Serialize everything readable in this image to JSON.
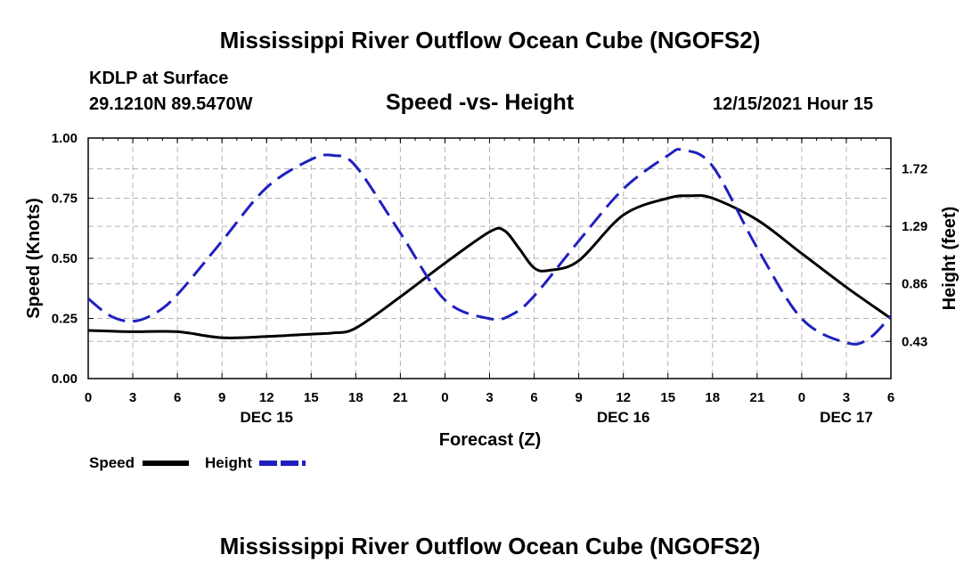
{
  "header": {
    "title": "Mississippi River Outflow Ocean Cube (NGOFS2)",
    "station": "KDLP at Surface",
    "coords": "29.1210N  89.5470W",
    "subtitle": "Speed -vs- Height",
    "datetime": "12/15/2021 Hour 15"
  },
  "footer": {
    "title": "Mississippi River Outflow Ocean Cube (NGOFS2)"
  },
  "colors": {
    "speed": "#000000",
    "height": "#1f1fbf",
    "grid": "#b4b4b4"
  },
  "chart_data": {
    "type": "line",
    "title": "Speed -vs- Height",
    "xlabel": "Forecast (Z)",
    "ylabel": "Speed (Knots)",
    "y2label": "Height (feet)",
    "xlim": [
      0,
      54
    ],
    "ylim": [
      0,
      1
    ],
    "y2lim": [
      0.152,
      1.95
    ],
    "x_ticks": [
      0,
      3,
      6,
      9,
      12,
      15,
      18,
      21,
      24,
      27,
      30,
      33,
      36,
      39,
      42,
      45,
      48,
      51,
      54
    ],
    "x_tick_labels": [
      "0",
      "3",
      "6",
      "9",
      "12",
      "15",
      "18",
      "21",
      "0",
      "3",
      "6",
      "9",
      "12",
      "15",
      "18",
      "21",
      "0",
      "3",
      "6"
    ],
    "y_ticks": [
      0,
      0.25,
      0.5,
      0.75,
      1.0
    ],
    "y_tick_labels": [
      "0.00",
      "0.25",
      "0.50",
      "0.75",
      "1.00"
    ],
    "y2_ticks": [
      0.43,
      0.86,
      1.29,
      1.72
    ],
    "y2_tick_labels": [
      "0.43",
      "0.86",
      "1.29",
      "1.72"
    ],
    "day_labels": [
      {
        "x": 12,
        "label": "DEC 15"
      },
      {
        "x": 36,
        "label": "DEC 16"
      },
      {
        "x": 51,
        "label": "DEC 17"
      }
    ],
    "grid": true,
    "legend": "bottom-left",
    "series": [
      {
        "name": "Speed",
        "axis": "left",
        "style": "solid",
        "x": [
          0,
          3,
          6,
          9,
          12,
          15,
          16.5,
          18,
          21,
          24,
          27,
          28,
          29,
          30,
          31,
          33,
          36,
          39,
          40.5,
          42,
          45,
          48,
          51,
          54
        ],
        "y": [
          0.2,
          0.195,
          0.195,
          0.17,
          0.175,
          0.185,
          0.19,
          0.21,
          0.34,
          0.48,
          0.61,
          0.615,
          0.54,
          0.46,
          0.45,
          0.49,
          0.68,
          0.75,
          0.76,
          0.75,
          0.66,
          0.52,
          0.38,
          0.25
        ]
      },
      {
        "name": "Height",
        "axis": "right",
        "style": "dashed",
        "x": [
          0,
          1.5,
          3,
          4.5,
          6,
          9,
          12,
          15,
          16.5,
          18,
          21,
          24,
          27,
          28.5,
          30,
          33,
          36,
          39,
          40,
          42,
          45,
          48,
          51,
          52.5,
          54
        ],
        "y": [
          0.75,
          0.62,
          0.58,
          0.64,
          0.78,
          1.18,
          1.58,
          1.79,
          1.82,
          1.74,
          1.24,
          0.74,
          0.6,
          0.63,
          0.77,
          1.18,
          1.57,
          1.82,
          1.86,
          1.74,
          1.13,
          0.6,
          0.42,
          0.45,
          0.62
        ]
      }
    ]
  }
}
